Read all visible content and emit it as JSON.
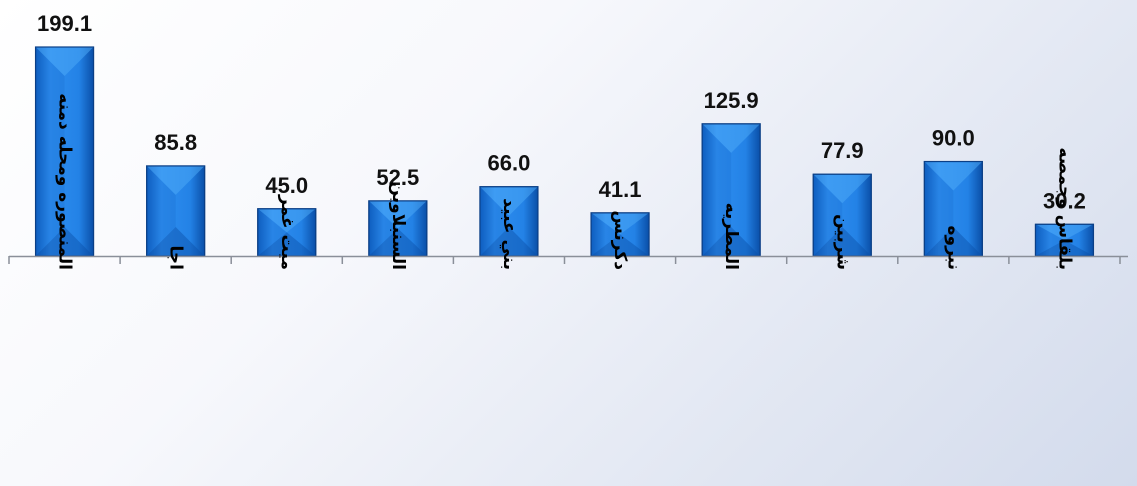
{
  "chart_data": {
    "type": "bar",
    "categories": [
      "المنصوره ومحله دمنه",
      "اجا",
      "ميت غمر",
      "السنبلاوين",
      "بني عبيد",
      "دكرنس",
      "المطريه",
      "شربين",
      "نبروه",
      "بلقاس وجمصه"
    ],
    "values": [
      199.1,
      85.8,
      45.0,
      52.5,
      66.0,
      41.1,
      125.9,
      77.9,
      90.0,
      30.2
    ],
    "value_labels": [
      "199.1",
      "85.8",
      "45.0",
      "52.5",
      "66.0",
      "41.1",
      "125.9",
      "77.9",
      "90.0",
      "30.2"
    ],
    "title": "",
    "xlabel": "",
    "ylabel": "",
    "ylim": [
      0,
      200
    ],
    "grid": false,
    "legend": "none",
    "colors": {
      "bar_light": "#4aa8f5",
      "bar_mid": "#1b74d6",
      "bar_dark": "#0a4fa8",
      "bar_edge": "#0b3f86",
      "axis": "#8a8f99"
    }
  }
}
